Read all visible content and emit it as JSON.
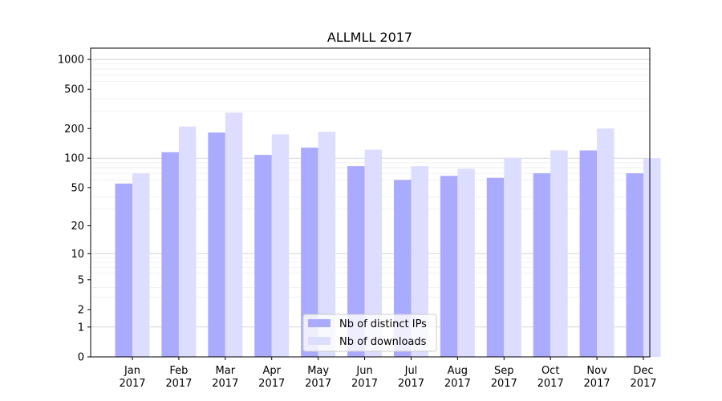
{
  "chart_data": {
    "type": "bar",
    "title": "ALLMLL 2017",
    "xlabel": "",
    "ylabel": "",
    "scale": "log",
    "ylim": [
      0,
      1300
    ],
    "categories": [
      [
        "Jan",
        "2017"
      ],
      [
        "Feb",
        "2017"
      ],
      [
        "Mar",
        "2017"
      ],
      [
        "Apr",
        "2017"
      ],
      [
        "May",
        "2017"
      ],
      [
        "Jun",
        "2017"
      ],
      [
        "Jul",
        "2017"
      ],
      [
        "Aug",
        "2017"
      ],
      [
        "Sep",
        "2017"
      ],
      [
        "Oct",
        "2017"
      ],
      [
        "Nov",
        "2017"
      ],
      [
        "Dec",
        "2017"
      ]
    ],
    "yticks": [
      {
        "value": 0,
        "label": "0"
      },
      {
        "value": 1,
        "label": "1"
      },
      {
        "value": 2,
        "label": "2"
      },
      {
        "value": 5,
        "label": "5"
      },
      {
        "value": 10,
        "label": "10"
      },
      {
        "value": 20,
        "label": "20"
      },
      {
        "value": 50,
        "label": "50"
      },
      {
        "value": 100,
        "label": "100"
      },
      {
        "value": 200,
        "label": "200"
      },
      {
        "value": 500,
        "label": "500"
      },
      {
        "value": 1000,
        "label": "1000"
      }
    ],
    "series": [
      {
        "name": "Nb of distinct IPs",
        "color": "#aaaaff",
        "values": [
          55,
          115,
          182,
          108,
          128,
          83,
          60,
          66,
          63,
          70,
          120,
          70
        ]
      },
      {
        "name": "Nb of downloads",
        "color": "#ddddff",
        "values": [
          70,
          210,
          290,
          175,
          185,
          122,
          83,
          78,
          101,
          120,
          200,
          100
        ]
      }
    ],
    "grid": true,
    "legend_position": "bottom-center"
  }
}
